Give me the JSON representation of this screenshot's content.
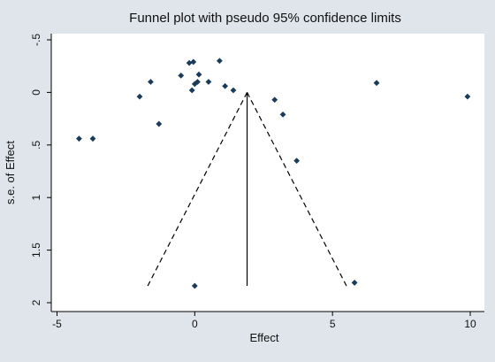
{
  "chart_data": {
    "type": "scatter",
    "title": "Funnel plot with pseudo 95% confidence limits",
    "xlabel": "Effect",
    "ylabel": "s.e. of Effect",
    "xlim": [
      -5.3,
      10.3
    ],
    "ylim": [
      -0.5,
      2.0
    ],
    "y_inverted": true,
    "x_ticks": [
      -5,
      0,
      5,
      10
    ],
    "x_tick_labels": [
      "-5",
      "0",
      "5",
      "10"
    ],
    "y_ticks": [
      -0.5,
      0,
      0.5,
      1,
      1.5,
      2
    ],
    "y_tick_labels": [
      "-.5",
      "0",
      ".5",
      "1",
      "1.5",
      "2"
    ],
    "grid": false,
    "series": [
      {
        "points": [
          {
            "x": -4.2,
            "y": 0.44
          },
          {
            "x": -3.7,
            "y": 0.44
          },
          {
            "x": -2.0,
            "y": 0.04
          },
          {
            "x": -1.6,
            "y": -0.1
          },
          {
            "x": -1.3,
            "y": 0.3
          },
          {
            "x": -0.5,
            "y": -0.16
          },
          {
            "x": -0.2,
            "y": -0.28
          },
          {
            "x": -0.05,
            "y": -0.29
          },
          {
            "x": -0.1,
            "y": -0.02
          },
          {
            "x": 0.0,
            "y": -0.08
          },
          {
            "x": 0.1,
            "y": -0.1
          },
          {
            "x": 0.15,
            "y": -0.17
          },
          {
            "x": 0.5,
            "y": -0.1
          },
          {
            "x": 0.9,
            "y": -0.3
          },
          {
            "x": 1.1,
            "y": -0.06
          },
          {
            "x": 1.4,
            "y": -0.02
          },
          {
            "x": 2.9,
            "y": 0.07
          },
          {
            "x": 3.2,
            "y": 0.21
          },
          {
            "x": 3.7,
            "y": 0.65
          },
          {
            "x": 6.6,
            "y": -0.09
          },
          {
            "x": 9.9,
            "y": 0.04
          },
          {
            "x": 0.0,
            "y": 1.84
          },
          {
            "x": 5.8,
            "y": 1.81
          }
        ]
      }
    ],
    "pooled_effect": 1.9,
    "funnel": {
      "apex_se": 0.0,
      "base_se": 1.84,
      "z": 1.96
    },
    "colors": {
      "background": "#dfe5ea",
      "plot_area": "#ffffff",
      "marker": "#1a3c5a",
      "lines": "#000000"
    }
  }
}
